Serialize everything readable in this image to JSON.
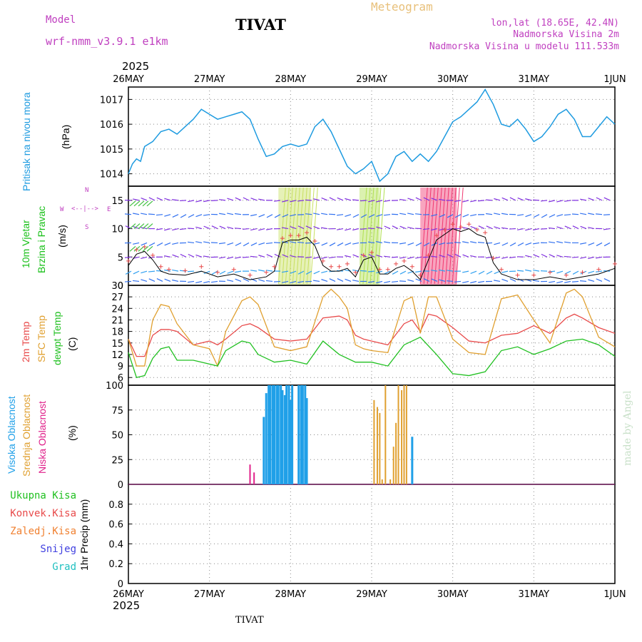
{
  "header": {
    "model_label": "Model",
    "model_name": "wrf-nmm_v3.9.1  e1km",
    "station": "TIVAT",
    "meteogram_label": "Meteogram",
    "coords": "lon,lat (18.65E, 42.4N)",
    "elevation": "Nadmorska Visina 2m",
    "model_elevation": "Nadmorska Visina u modelu 111.533m",
    "year_top": "2025",
    "year_bottom": "2025",
    "footer_station": "TIVAT",
    "watermark": "made by Angel"
  },
  "colors": {
    "pressure": "#1e9be0",
    "wind_label": "#18c018",
    "wind_dir": "#c040c0",
    "temp2m": "#e84a4a",
    "sfc": "#e0a030",
    "dewpt": "#20c020",
    "high_cloud": "#20a0e8",
    "mid_cloud": "#e0a030",
    "low_cloud": "#e0208a",
    "precip_total": "#20c020",
    "precip_conv": "#e84a4a",
    "precip_strat": "#f08030",
    "snow": "#4040e0",
    "hail": "#20c0c0"
  },
  "panel_labels": {
    "pressure": [
      "Pritisak na nivou mora"
    ],
    "pressure_unit": "(hPa)",
    "wind": [
      "10m Vjetar",
      "Brzina i Pravac"
    ],
    "wind_unit": "(m/s)",
    "wind_dir_n": "N",
    "wind_dir_s": "S",
    "wind_dir_w": "W",
    "wind_dir_e": "E",
    "temp": [
      "2m Temp",
      "SFC Temp",
      "dewpt Temp"
    ],
    "temp_unit": "(C)",
    "cloud": [
      "Visoka Oblacnost",
      "Srednja Oblacnost",
      "Niska Oblacnost"
    ],
    "cloud_unit": "(%)",
    "precip": [
      "Ukupna Kisa",
      "Konvek.Kisa",
      "Zaledj.Kisa",
      "Snijeg",
      "Grad"
    ],
    "precip_unit": "1hr Precip (mm)"
  },
  "chart_data": [
    {
      "type": "line",
      "name": "pressure",
      "x_ticks": [
        "26MAY",
        "27MAY",
        "28MAY",
        "29MAY",
        "30MAY",
        "31MAY",
        "1JUN"
      ],
      "ylim": [
        1013.5,
        1017.5
      ],
      "y_ticks": [
        "1014",
        "1015",
        "1016",
        "1017"
      ],
      "series": [
        {
          "name": "Pritisak na nivou mora",
          "x": [
            0,
            0.05,
            0.1,
            0.15,
            0.2,
            0.3,
            0.4,
            0.5,
            0.6,
            0.7,
            0.8,
            0.9,
            1.0,
            1.1,
            1.2,
            1.3,
            1.4,
            1.5,
            1.6,
            1.7,
            1.8,
            1.9,
            2.0,
            2.1,
            2.2,
            2.3,
            2.4,
            2.5,
            2.6,
            2.7,
            2.8,
            2.9,
            3.0,
            3.1,
            3.2,
            3.3,
            3.4,
            3.5,
            3.6,
            3.7,
            3.8,
            3.9,
            4.0,
            4.1,
            4.2,
            4.3,
            4.4,
            4.5,
            4.6,
            4.7,
            4.8,
            4.9,
            5.0,
            5.1,
            5.2,
            5.3,
            5.4,
            5.5,
            5.6,
            5.7,
            5.8,
            5.9,
            6.0
          ],
          "values": [
            1014.0,
            1014.4,
            1014.6,
            1014.5,
            1015.1,
            1015.3,
            1015.7,
            1015.8,
            1015.6,
            1015.9,
            1016.2,
            1016.6,
            1016.4,
            1016.2,
            1016.3,
            1016.4,
            1016.5,
            1016.2,
            1015.4,
            1014.7,
            1014.8,
            1015.1,
            1015.2,
            1015.1,
            1015.2,
            1015.9,
            1016.2,
            1015.7,
            1015.0,
            1014.3,
            1014.0,
            1014.2,
            1014.5,
            1013.7,
            1014.0,
            1014.7,
            1014.9,
            1014.5,
            1014.8,
            1014.5,
            1014.9,
            1015.5,
            1016.1,
            1016.3,
            1016.6,
            1016.9,
            1017.4,
            1016.8,
            1016.0,
            1015.9,
            1016.2,
            1015.8,
            1015.3,
            1015.5,
            1015.9,
            1016.4,
            1016.6,
            1016.2,
            1015.5,
            1015.5,
            1015.9,
            1016.3,
            1016.0
          ]
        }
      ]
    },
    {
      "type": "line",
      "name": "wind",
      "x_ticks": [
        "26MAY",
        "27MAY",
        "28MAY",
        "29MAY",
        "30MAY",
        "31MAY",
        "1JUN"
      ],
      "ylim": [
        0,
        17.5
      ],
      "y_ticks": [
        "0",
        "5",
        "10",
        "15"
      ],
      "series": [
        {
          "name": "speed",
          "x": [
            0,
            0.1,
            0.2,
            0.3,
            0.4,
            0.5,
            0.7,
            0.9,
            1.1,
            1.3,
            1.5,
            1.7,
            1.8,
            1.9,
            2.0,
            2.1,
            2.2,
            2.3,
            2.4,
            2.5,
            2.6,
            2.7,
            2.8,
            2.9,
            3.0,
            3.1,
            3.2,
            3.3,
            3.4,
            3.5,
            3.6,
            3.7,
            3.8,
            3.9,
            4.0,
            4.1,
            4.2,
            4.3,
            4.4,
            4.5,
            4.6,
            4.8,
            5.0,
            5.2,
            5.4,
            5.6,
            5.8,
            6.0
          ],
          "values": [
            3.5,
            5.5,
            6.0,
            4.5,
            2.5,
            2.0,
            1.8,
            2.5,
            1.5,
            2.0,
            1.0,
            1.5,
            2.5,
            7.5,
            8.0,
            8.0,
            8.5,
            7.0,
            3.5,
            2.5,
            2.5,
            3.0,
            1.5,
            4.5,
            5.0,
            2.0,
            2.0,
            3.0,
            3.5,
            2.5,
            1.0,
            4.5,
            8.0,
            9.0,
            10.0,
            9.5,
            10.0,
            9.0,
            8.5,
            4.0,
            2.0,
            1.0,
            1.0,
            1.5,
            1.0,
            1.5,
            2.0,
            3.0
          ]
        }
      ]
    },
    {
      "type": "line",
      "name": "temperature",
      "x_ticks": [
        "26MAY",
        "27MAY",
        "28MAY",
        "29MAY",
        "30MAY",
        "31MAY",
        "1JUN"
      ],
      "ylim": [
        4,
        30
      ],
      "y_ticks": [
        "6",
        "9",
        "12",
        "15",
        "18",
        "21",
        "24",
        "27",
        "30"
      ],
      "series": [
        {
          "name": "2m Temp",
          "x": [
            0,
            0.1,
            0.2,
            0.3,
            0.4,
            0.5,
            0.6,
            0.8,
            1.0,
            1.1,
            1.2,
            1.4,
            1.5,
            1.6,
            1.8,
            2.0,
            2.2,
            2.4,
            2.6,
            2.7,
            2.8,
            2.9,
            3.0,
            3.2,
            3.4,
            3.5,
            3.6,
            3.7,
            3.8,
            4.0,
            4.2,
            4.4,
            4.6,
            4.8,
            5.0,
            5.2,
            5.4,
            5.5,
            5.6,
            5.8,
            6.0
          ],
          "values": [
            16.0,
            11.5,
            11.5,
            17.0,
            18.5,
            18.5,
            18.0,
            14.5,
            15.5,
            14.5,
            16.0,
            19.5,
            20.0,
            19.0,
            16.0,
            15.5,
            16.0,
            21.5,
            22.0,
            21.0,
            17.0,
            16.0,
            15.5,
            14.5,
            20.0,
            21.0,
            18.0,
            22.5,
            22.0,
            19.0,
            15.5,
            15.0,
            17.0,
            17.5,
            19.5,
            17.5,
            21.5,
            22.5,
            21.5,
            19.0,
            17.5
          ]
        },
        {
          "name": "SFC Temp",
          "x": [
            0,
            0.1,
            0.2,
            0.3,
            0.4,
            0.5,
            0.6,
            0.8,
            1.0,
            1.1,
            1.2,
            1.4,
            1.5,
            1.6,
            1.8,
            2.0,
            2.2,
            2.4,
            2.5,
            2.6,
            2.7,
            2.8,
            2.9,
            3.0,
            3.2,
            3.4,
            3.5,
            3.6,
            3.7,
            3.8,
            4.0,
            4.2,
            4.4,
            4.6,
            4.8,
            5.0,
            5.2,
            5.4,
            5.5,
            5.6,
            5.8,
            6.0
          ],
          "values": [
            16.0,
            9.0,
            9.0,
            21.0,
            25.0,
            24.5,
            20.0,
            14.5,
            13.5,
            9.0,
            18.0,
            26.0,
            27.0,
            25.0,
            14.0,
            13.0,
            14.0,
            27.0,
            29.0,
            27.0,
            24.0,
            14.5,
            13.5,
            13.0,
            12.5,
            26.0,
            27.0,
            17.5,
            27.0,
            27.0,
            16.0,
            12.5,
            12.0,
            26.5,
            27.5,
            21.0,
            15.0,
            28.0,
            29.0,
            27.0,
            16.5,
            14.0
          ]
        },
        {
          "name": "dewpt Temp",
          "x": [
            0,
            0.1,
            0.2,
            0.3,
            0.4,
            0.5,
            0.6,
            0.8,
            1.0,
            1.1,
            1.2,
            1.4,
            1.5,
            1.6,
            1.8,
            2.0,
            2.2,
            2.4,
            2.6,
            2.8,
            3.0,
            3.2,
            3.4,
            3.6,
            3.8,
            4.0,
            4.2,
            4.4,
            4.6,
            4.8,
            5.0,
            5.2,
            5.4,
            5.6,
            5.8,
            6.0
          ],
          "values": [
            12.5,
            6.0,
            6.5,
            11.0,
            13.5,
            14.0,
            10.5,
            10.5,
            9.5,
            9.0,
            13.0,
            15.5,
            15.0,
            12.0,
            10.0,
            10.5,
            9.5,
            15.5,
            12.0,
            10.0,
            10.0,
            9.0,
            14.5,
            16.5,
            12.0,
            7.0,
            6.5,
            7.5,
            13.0,
            14.0,
            12.0,
            13.5,
            15.5,
            16.0,
            14.5,
            11.5
          ]
        }
      ]
    },
    {
      "type": "bar",
      "name": "clouds",
      "x_ticks": [
        "26MAY",
        "27MAY",
        "28MAY",
        "29MAY",
        "30MAY",
        "31MAY",
        "1JUN"
      ],
      "ylim": [
        0,
        100
      ],
      "y_ticks": [
        "0",
        "25",
        "50",
        "75",
        "100"
      ],
      "series": [
        {
          "name": "Visoka Oblacnost",
          "x": [
            1.67,
            1.7,
            1.73,
            1.75,
            1.78,
            1.8,
            1.83,
            1.85,
            1.88,
            1.9,
            1.93,
            1.95,
            1.98,
            2.0,
            2.02,
            2.05,
            2.07,
            2.1,
            2.13,
            2.15,
            2.18,
            2.2,
            3.5
          ],
          "values": [
            68,
            92,
            100,
            100,
            100,
            100,
            100,
            100,
            100,
            95,
            90,
            100,
            100,
            85,
            100,
            0,
            0,
            100,
            100,
            100,
            100,
            87,
            48
          ]
        },
        {
          "name": "Srednja Oblacnost",
          "x": [
            3.03,
            3.07,
            3.1,
            3.13,
            3.17,
            3.2,
            3.23,
            3.27,
            3.3,
            3.33,
            3.37,
            3.4,
            3.43,
            3.47
          ],
          "values": [
            85,
            78,
            72,
            5,
            100,
            0,
            5,
            38,
            62,
            100,
            95,
            100,
            100,
            0
          ]
        },
        {
          "name": "Niska Oblacnost",
          "x": [
            1.5,
            1.55
          ],
          "values": [
            20,
            12
          ]
        }
      ]
    },
    {
      "type": "bar",
      "name": "precipitation",
      "x_ticks": [
        "26MAY",
        "27MAY",
        "28MAY",
        "29MAY",
        "30MAY",
        "31MAY",
        "1JUN"
      ],
      "ylim": [
        0,
        1.0
      ],
      "y_ticks": [
        "0",
        "0.2",
        "0.4",
        "0.6",
        "0.8"
      ],
      "series": []
    }
  ]
}
